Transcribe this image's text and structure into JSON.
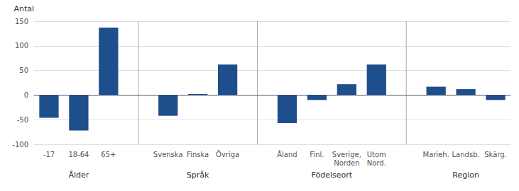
{
  "chart_data": {
    "type": "bar",
    "ylabel": "Antal",
    "categories": [
      "-17",
      "18-64",
      "65+",
      "Svenska",
      "Finska",
      "Övriga",
      "Åland",
      "Finl.",
      "Sverige,\nNorden",
      "Utom\nNord.",
      "Marieh.",
      "Landsb.",
      "Skärg."
    ],
    "values": [
      -46,
      -72,
      137,
      -42,
      2,
      62,
      -57,
      -10,
      22,
      62,
      17,
      12,
      -10
    ],
    "groups": [
      {
        "label": "Ålder",
        "categories": [
          "-17",
          "18-64",
          "65+"
        ]
      },
      {
        "label": "Språk",
        "categories": [
          "Svenska",
          "Finska",
          "Övriga"
        ]
      },
      {
        "label": "Födelseort",
        "categories": [
          "Åland",
          "Finl.",
          "Sverige,\nNorden",
          "Utom\nNord."
        ]
      },
      {
        "label": "Region",
        "categories": [
          "Marieh.",
          "Landsb.",
          "Skärg."
        ]
      }
    ],
    "color": "#1F4E8C",
    "ylim": [
      -100,
      150
    ],
    "yticks": [
      -100,
      -50,
      0,
      50,
      100,
      150
    ],
    "grid": true
  }
}
